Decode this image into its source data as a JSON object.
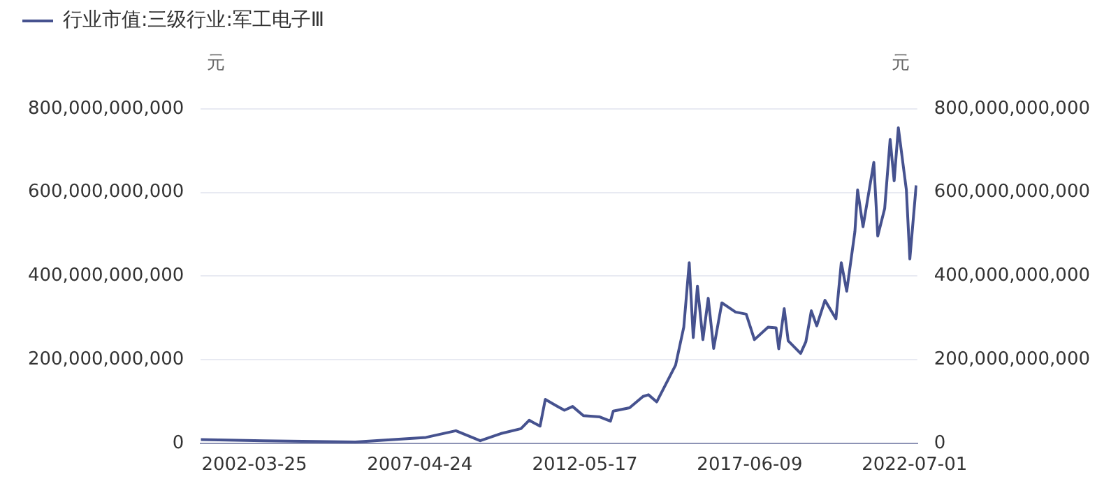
{
  "chart_data": {
    "type": "line",
    "ylabel": "元",
    "y2label": "元",
    "x": [
      "2000-08-01",
      "2002-07-01",
      "2005-05-01",
      "2007-07-01",
      "2008-06-01",
      "2009-03-01",
      "2009-11-01",
      "2010-06-01",
      "2010-09-01",
      "2011-01-01",
      "2011-03-01",
      "2011-07-01",
      "2011-10-01",
      "2012-01-01",
      "2012-05-01",
      "2012-11-01",
      "2013-03-01",
      "2013-04-01",
      "2013-10-01",
      "2014-03-01",
      "2014-05-01",
      "2014-08-01",
      "2015-03-01",
      "2015-06-01",
      "2015-08-01",
      "2015-09-15",
      "2015-11-01",
      "2016-01-01",
      "2016-03-01",
      "2016-05-01",
      "2016-08-01",
      "2017-01-01",
      "2017-05-01",
      "2017-08-01",
      "2018-01-01",
      "2018-04-01",
      "2018-05-01",
      "2018-07-01",
      "2018-08-15",
      "2019-01-01",
      "2019-03-01",
      "2019-05-01",
      "2019-07-01",
      "2019-10-01",
      "2020-02-01",
      "2020-04-01",
      "2020-06-01",
      "2020-09-01",
      "2020-10-01",
      "2020-12-01",
      "2021-04-01",
      "2021-05-15",
      "2021-08-01",
      "2021-10-01",
      "2021-11-15",
      "2022-01-01",
      "2022-04-01",
      "2022-05-10",
      "2022-06-10",
      "2022-07-20"
    ],
    "series": [
      {
        "name": "行业市值:三级行业:军工电子Ⅲ",
        "color": "#46528f",
        "values": [
          9000000000,
          6000000000,
          3000000000,
          14000000000,
          30000000000,
          6000000000,
          24000000000,
          35000000000,
          55000000000,
          41000000000,
          105000000000,
          90000000000,
          79000000000,
          88000000000,
          66000000000,
          63000000000,
          53000000000,
          77000000000,
          85000000000,
          112000000000,
          116000000000,
          99000000000,
          187000000000,
          278000000000,
          432000000000,
          253000000000,
          376000000000,
          248000000000,
          347000000000,
          227000000000,
          336000000000,
          314000000000,
          309000000000,
          248000000000,
          278000000000,
          276000000000,
          226000000000,
          322000000000,
          245000000000,
          215000000000,
          243000000000,
          317000000000,
          281000000000,
          342000000000,
          298000000000,
          432000000000,
          364000000000,
          507000000000,
          606000000000,
          518000000000,
          672000000000,
          496000000000,
          562000000000,
          727000000000,
          628000000000,
          755000000000,
          606000000000,
          441000000000,
          518000000000,
          617000000000
        ]
      }
    ],
    "xlim": [
      "2000-08-01",
      "2022-08-01"
    ],
    "xticks": [
      "2002-03-25",
      "2007-04-24",
      "2012-05-17",
      "2017-06-09",
      "2022-07-01"
    ],
    "ylim": [
      0,
      800000000000
    ],
    "yticks": [
      0,
      {
        "value": 200000000000,
        "label": "200,000,000,000"
      },
      {
        "value": 400000000000,
        "label": "400,000,000,000"
      },
      {
        "value": 600000000000,
        "label": "600,000,000,000"
      },
      {
        "value": 800000000000,
        "label": "800,000,000,000"
      }
    ],
    "y2lim": [
      0,
      800000000000
    ],
    "y2ticks": [
      0,
      {
        "value": 200000000000,
        "label": "200,000,000,000"
      },
      {
        "value": 400000000000,
        "label": "400,000,000,000"
      },
      {
        "value": 600000000000,
        "label": "600,000,000,000"
      },
      {
        "value": 800000000000,
        "label": "800,000,000,000"
      }
    ],
    "grid": "y",
    "legend": "top left",
    "marker": "none",
    "line_style": "solid"
  }
}
